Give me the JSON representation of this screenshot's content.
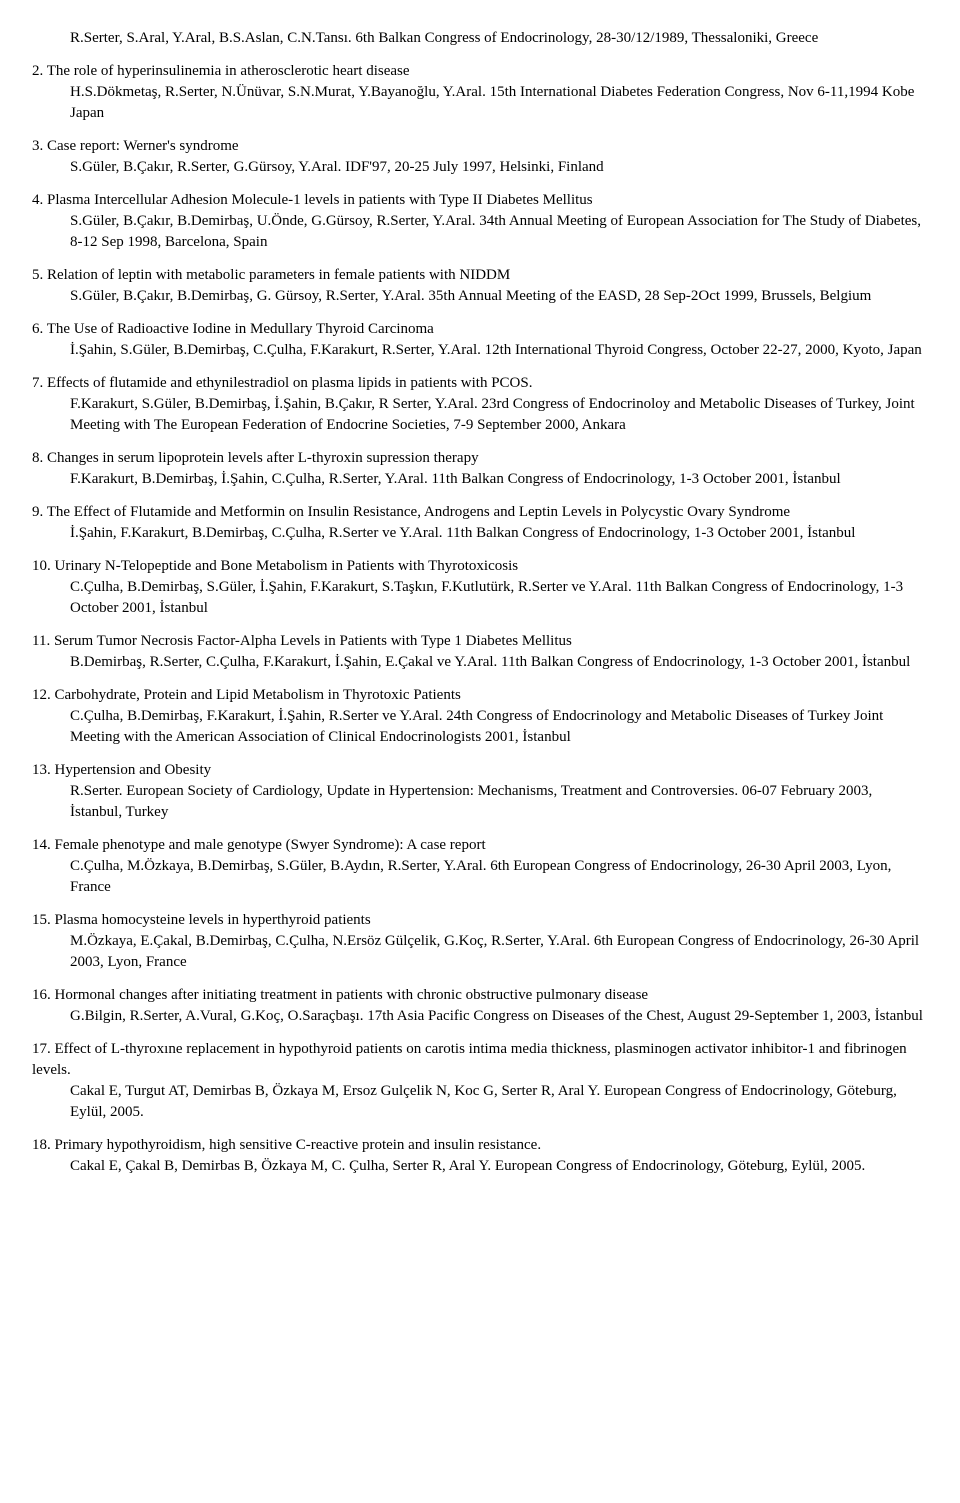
{
  "prelude": [
    "R.Serter, S.Aral, Y.Aral, B.S.Aslan, C.N.Tansı. 6th Balkan Congress of Endocrinology, 28-30/12/1989, Thessaloniki, Greece"
  ],
  "items": [
    {
      "n": "2.",
      "title": "The role of hyperinsulinemia in atherosclerotic heart disease",
      "detail": "H.S.Dökmetaş, R.Serter, N.Ünüvar, S.N.Murat, Y.Bayanoğlu, Y.Aral. 15th International Diabetes Federation Congress, Nov 6-11,1994 Kobe Japan"
    },
    {
      "n": "3.",
      "title": "Case report: Werner's syndrome",
      "detail": "S.Güler, B.Çakır, R.Serter, G.Gürsoy, Y.Aral. IDF'97, 20-25 July 1997, Helsinki, Finland"
    },
    {
      "n": "4.",
      "title": "Plasma Intercellular Adhesion Molecule-1 levels in patients with Type II Diabetes Mellitus",
      "detail": "S.Güler, B.Çakır, B.Demirbaş, U.Önde, G.Gürsoy, R.Serter, Y.Aral. 34th Annual Meeting of European Association for The Study of Diabetes, 8-12 Sep 1998, Barcelona, Spain"
    },
    {
      "n": "5.",
      "title": "Relation of leptin with metabolic parameters in female patients with NIDDM",
      "detail": "S.Güler, B.Çakır, B.Demirbaş, G. Gürsoy, R.Serter, Y.Aral. 35th Annual Meeting of the EASD, 28 Sep-2Oct 1999, Brussels, Belgium"
    },
    {
      "n": "6.",
      "title": "The Use of Radioactive Iodine in Medullary Thyroid Carcinoma",
      "detail": "İ.Şahin, S.Güler, B.Demirbaş, C.Çulha, F.Karakurt, R.Serter, Y.Aral. 12th International Thyroid Congress, October 22-27, 2000, Kyoto, Japan"
    },
    {
      "n": "7.",
      "title": "Effects of flutamide and ethynilestradiol on plasma lipids in patients with PCOS.",
      "detail": "F.Karakurt, S.Güler, B.Demirbaş, İ.Şahin, B.Çakır, R Serter, Y.Aral. 23rd Congress of Endocrinoloy and Metabolic Diseases of Turkey, Joint Meeting with The European Federation of Endocrine Societies, 7-9 September 2000, Ankara"
    },
    {
      "n": "8.",
      "title": "Changes in serum lipoprotein levels after L-thyroxin supression therapy",
      "detail": "F.Karakurt, B.Demirbaş, İ.Şahin, C.Çulha, R.Serter, Y.Aral. 11th Balkan Congress of Endocrinology, 1-3 October 2001, İstanbul"
    },
    {
      "n": "9.",
      "title": "The Effect of Flutamide and Metformin on Insulin Resistance, Androgens and Leptin Levels in Polycystic Ovary Syndrome",
      "detail": "İ.Şahin, F.Karakurt, B.Demirbaş, C.Çulha, R.Serter ve Y.Aral. 11th Balkan Congress of Endocrinology, 1-3 October 2001, İstanbul",
      "titleIndent": true
    },
    {
      "n": "10.",
      "title": "Urinary N-Telopeptide and Bone Metabolism in Patients with Thyrotoxicosis",
      "detail": "C.Çulha, B.Demirbaş, S.Güler, İ.Şahin, F.Karakurt, S.Taşkın, F.Kutlutürk, R.Serter ve Y.Aral. 11th Balkan Congress of Endocrinology, 1-3 October 2001, İstanbul"
    },
    {
      "n": "11.",
      "title": "Serum Tumor Necrosis Factor-Alpha Levels in Patients with Type 1 Diabetes Mellitus",
      "detail": "B.Demirbaş, R.Serter, C.Çulha, F.Karakurt, İ.Şahin, E.Çakal ve Y.Aral. 11th Balkan Congress of Endocrinology, 1-3 October   2001, İstanbul"
    },
    {
      "n": "12.",
      "title": "Carbohydrate, Protein and Lipid Metabolism in Thyrotoxic Patients",
      "detail": "C.Çulha, B.Demirbaş, F.Karakurt, İ.Şahin, R.Serter ve Y.Aral. 24th Congress of Endocrinology and Metabolic Diseases of Turkey Joint Meeting with the American Association of Clinical Endocrinologists 2001, İstanbul"
    },
    {
      "n": "13.",
      "title": "Hypertension and Obesity",
      "detail": "R.Serter. European Society of Cardiology, Update in Hypertension: Mechanisms, Treatment and Controversies. 06-07 February 2003, İstanbul, Turkey"
    },
    {
      "n": "14.",
      "title": "Female phenotype and male genotype (Swyer Syndrome): A case report",
      "detail": "C.Çulha, M.Özkaya, B.Demirbaş, S.Güler, B.Aydın, R.Serter, Y.Aral. 6th European Congress of Endocrinology, 26-30 April 2003, Lyon, France"
    },
    {
      "n": "15.",
      "title": "Plasma homocysteine levels in hyperthyroid patients",
      "detail": "M.Özkaya, E.Çakal, B.Demirbaş, C.Çulha, N.Ersöz Gülçelik, G.Koç, R.Serter, Y.Aral. 6th European Congress of Endocrinology, 26-30 April 2003, Lyon, France"
    },
    {
      "n": "16.",
      "title": "Hormonal changes after initiating treatment in patients with chronic obstructive pulmonary disease",
      "detail": "G.Bilgin, R.Serter, A.Vural, G.Koç, O.Saraçbaşı. 17th Asia Pacific Congress on Diseases of the Chest, August 29-September 1, 2003, İstanbul"
    },
    {
      "n": "17.",
      "title": "Effect of L-thyroxıne replacement in hypothyroid patients on carotis intima media thickness, plasminogen activator inhibitor-1 and fibrinogen levels.",
      "detail": "Cakal E, Turgut AT, Demirbas B, Özkaya M, Ersoz Gulçelik N, Koc G, Serter R, Aral Y. European Congress of Endocrinology, Göteburg, Eylül, 2005.",
      "titleIndent": true
    },
    {
      "n": "18.",
      "title": "Primary hypothyroidism, high sensitive C-reactive protein and insulin resistance.",
      "detail": "Cakal E, Çakal B, Demirbas B, Özkaya M, C. Çulha, Serter R, Aral Y. European Congress of Endocrinology, Göteburg, Eylül, 2005."
    }
  ]
}
